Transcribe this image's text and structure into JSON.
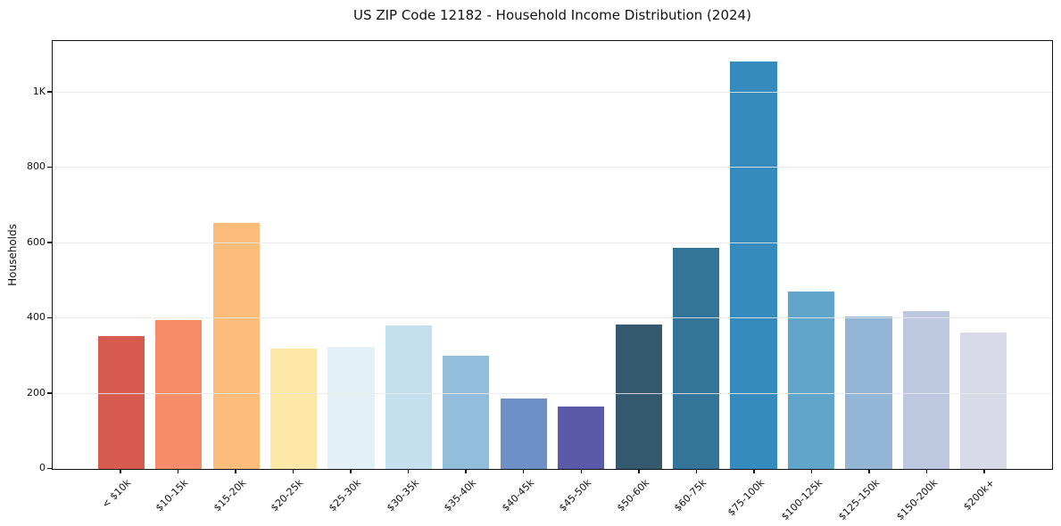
{
  "chart_data": {
    "type": "bar",
    "title": "US ZIP Code 12182 - Household Income Distribution (2024)",
    "xlabel": "",
    "ylabel": "Households",
    "ylim": [
      0,
      1134
    ],
    "grid": "horizontal-light",
    "legend": "none",
    "background": "#ffffff",
    "categories": [
      "< $10k",
      "$10-15k",
      "$15-20k",
      "$20-25k",
      "$25-30k",
      "$30-35k",
      "$35-40k",
      "$40-45k",
      "$45-50k",
      "$50-60k",
      "$60-75k",
      "$75-100k",
      "$100-125k",
      "$125-150k",
      "$150-200k",
      "$200k+"
    ],
    "values": [
      351,
      395,
      653,
      318,
      324,
      380,
      299,
      187,
      166,
      382,
      586,
      1080,
      471,
      403,
      418,
      361
    ],
    "bar_colors": [
      "#d85b50",
      "#f68c69",
      "#fcbc7a",
      "#fde8a8",
      "#e3f1f7",
      "#c4e0ee",
      "#92bddb",
      "#6d90c7",
      "#5c5aa8",
      "#34596e",
      "#337498",
      "#358abe",
      "#61a5cb",
      "#93b6d7",
      "#bdc8e0",
      "#d9dae8"
    ],
    "ytick_values": [
      0,
      200,
      400,
      600,
      800,
      1000
    ],
    "ytick_labels": [
      "0",
      "200",
      "400",
      "600",
      "800",
      "1K"
    ],
    "xtick_rotation_deg": 45
  }
}
